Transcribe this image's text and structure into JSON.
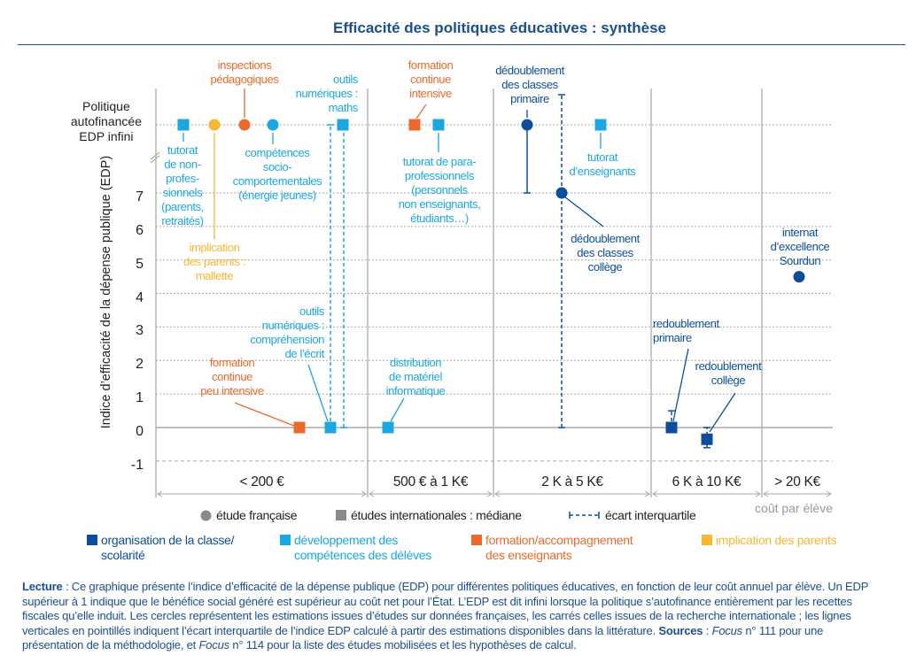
{
  "title": "Efficacité des politiques éducatives : synthèse",
  "chart_data": {
    "type": "scatter",
    "title": "Efficacité des politiques éducatives : synthèse",
    "ylabel": "Indice d’efficacité de la dépense publique (EDP)",
    "xlabel": "coût par élève",
    "infinite_row_label": "Politique autofinancée EDP infini",
    "ylim": [
      -1,
      7
    ],
    "yticks": [
      "7",
      "6",
      "5",
      "4",
      "3",
      "2",
      "1",
      "0",
      "-1"
    ],
    "grid": true,
    "categories": [
      "< 200 €",
      "500 € à 1 K€",
      "2 K à 5 K€",
      "6 K à 10 K€",
      "> 20 K€"
    ],
    "groups": [
      {
        "key": "org",
        "name": "organisation de la classe/ scolarité",
        "lines": [
          "organisation de la classe/",
          "scolarité"
        ],
        "color": "#0b4f9c"
      },
      {
        "key": "comp",
        "name": "développement des compétences des délèves",
        "lines": [
          "développement des",
          "compétences des délèves"
        ],
        "color": "#1ba8e0"
      },
      {
        "key": "form",
        "name": "formation/accompagnement des enseignants",
        "lines": [
          "formation/accompagnement",
          "des enseignants"
        ],
        "color": "#ec6a2c"
      },
      {
        "key": "par",
        "name": "implication des parents",
        "lines": [
          "implication des parents"
        ],
        "color": "#f8b733"
      }
    ],
    "legend": {
      "circle": "étude française",
      "square": "études internationales : médiane",
      "iqr": "écart interquartile"
    },
    "points": [
      {
        "label": [
          "tutorat",
          "de non-",
          "profes-",
          "sionnels",
          "(parents,",
          "retraités)"
        ],
        "category": "< 200 €",
        "group": "comp",
        "marker": "square",
        "value": "infini"
      },
      {
        "label": [
          "implication",
          "des parents :",
          "mallette"
        ],
        "category": "< 200 €",
        "group": "par",
        "marker": "circle",
        "value": "infini"
      },
      {
        "label": [
          "inspections",
          "pédagogiques"
        ],
        "category": "< 200 €",
        "group": "form",
        "marker": "circle",
        "value": "infini"
      },
      {
        "label": [
          "compétences",
          "socio-",
          "comportementales",
          "(énergie jeunes)"
        ],
        "category": "< 200 €",
        "group": "comp",
        "marker": "circle",
        "value": "infini"
      },
      {
        "label": [
          "outils",
          "numériques :",
          "maths"
        ],
        "category": "< 200 €",
        "group": "comp",
        "marker": "square",
        "value": "infini",
        "iqr": [
          0,
          "infini"
        ]
      },
      {
        "label": [
          "formation",
          "continue",
          "peu intensive"
        ],
        "category": "< 200 €",
        "group": "form",
        "marker": "square",
        "value": 0
      },
      {
        "label": [
          "outils",
          "numériques :",
          "compréhension",
          "de l’écrit"
        ],
        "category": "< 200 €",
        "group": "comp",
        "marker": "square",
        "value": 0,
        "iqr": [
          0,
          "infini"
        ]
      },
      {
        "label": [
          "formation",
          "continue",
          "intensive"
        ],
        "category": "500 € à 1 K€",
        "group": "form",
        "marker": "square",
        "value": "infini"
      },
      {
        "label": [
          "tutorat de para-",
          "professionnels",
          "(personnels",
          "non enseignants,",
          "étudiants…)"
        ],
        "category": "500 € à 1 K€",
        "group": "comp",
        "marker": "square",
        "value": "infini"
      },
      {
        "label": [
          "distribution",
          "de matériel",
          "informatique"
        ],
        "category": "500 € à 1 K€",
        "group": "comp",
        "marker": "square",
        "value": 0
      },
      {
        "label": [
          "dédoublement",
          "des classes",
          "primaire"
        ],
        "category": "2 K à 5 K€",
        "group": "org",
        "marker": "circle",
        "value": "infini",
        "iqr": [
          7,
          "infini"
        ]
      },
      {
        "label": [
          "dédoublement",
          "des classes",
          "collège"
        ],
        "category": "2 K à 5 K€",
        "group": "org",
        "marker": "circle",
        "value": 7,
        "iqr": [
          0,
          "infini"
        ]
      },
      {
        "label": [
          "tutorat",
          "d’enseignants"
        ],
        "category": "2 K à 5 K€",
        "group": "comp",
        "marker": "square",
        "value": "infini"
      },
      {
        "label": [
          "redoublement",
          "primaire"
        ],
        "category": "6 K à 10 K€",
        "group": "org",
        "marker": "square",
        "value": 0,
        "iqr": [
          0,
          0.5
        ]
      },
      {
        "label": [
          "redoublement",
          "collège"
        ],
        "category": "6 K à 10 K€",
        "group": "org",
        "marker": "square",
        "value": -0.35,
        "iqr": [
          -0.6,
          0
        ]
      },
      {
        "label": [
          "internat",
          "d’excellence",
          "Sourdun"
        ],
        "category": "> 20 K€",
        "group": "org",
        "marker": "circle",
        "value": 4.5
      }
    ]
  },
  "note": {
    "lecture_label": "Lecture",
    "lecture_text": " : Ce graphique présente l’indice d’efficacité de la dépense publique (EDP) pour différentes politiques éducatives, en fonction de leur coût annuel par élève. Un EDP supérieur à 1 indique que le bénéfice social généré est supérieur au coût net pour l’État. L’EDP est dit infini lorsque la politique s’autofinance entièrement par les recettes fiscales qu’elle induit. Les cercles représentent les estimations issues d’études sur données françaises, les carrés celles issues de la recherche internationale ; les lignes verticales en pointillés indiquent l’écart interquartile de l’indice EDP calculé à partir des estimations disponibles dans la littérature. ",
    "sources_label": "Sources",
    "sources_pre": " : ",
    "focus1": "Focus",
    "sources_mid": " n° 111 pour une présentation de la méthodologie, et ",
    "focus2": "Focus",
    "sources_end": " n° 114 pour la liste des études mobilisées et les hypothèses de calcul."
  }
}
